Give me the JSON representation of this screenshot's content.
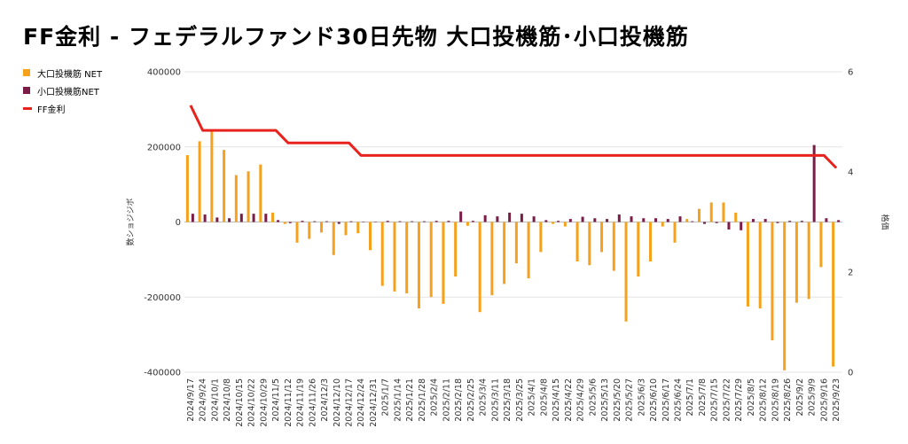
{
  "chart_data": {
    "type": "bar",
    "title": "FF金利 - フェデラルファンド30日先物 大口投機筋･小口投機筋",
    "ylabel": "数ショジジボ",
    "y2label": "格価",
    "ylim": [
      -400000,
      400000
    ],
    "y2lim": [
      0,
      6
    ],
    "yticks": [
      "400000",
      "200000",
      "0",
      "-200000",
      "-400000"
    ],
    "y2ticks": [
      "6",
      "4",
      "2",
      "0"
    ],
    "grid": true,
    "legend_position": "left",
    "categories": [
      "2024/9/17",
      "2024/9/24",
      "2024/10/1",
      "2024/10/8",
      "2024/10/15",
      "2024/10/22",
      "2024/10/29",
      "2024/11/5",
      "2024/11/12",
      "2024/11/19",
      "2024/11/26",
      "2024/12/3",
      "2024/12/10",
      "2024/12/17",
      "2024/12/24",
      "2024/12/31",
      "2025/1/7",
      "2025/1/14",
      "2025/1/21",
      "2025/1/28",
      "2025/2/4",
      "2025/2/11",
      "2025/2/18",
      "2025/2/25",
      "2025/3/4",
      "2025/3/11",
      "2025/3/18",
      "2025/3/25",
      "2025/4/1",
      "2025/4/8",
      "2025/4/15",
      "2025/4/22",
      "2025/4/29",
      "2025/5/6",
      "2025/5/13",
      "2025/5/20",
      "2025/5/27",
      "2025/6/3",
      "2025/6/10",
      "2025/6/17",
      "2025/6/24",
      "2025/7/1",
      "2025/7/8",
      "2025/7/15",
      "2025/7/22",
      "2025/7/29",
      "2025/8/5",
      "2025/8/12",
      "2025/8/19",
      "2025/8/26",
      "2025/9/2",
      "2025/9/9",
      "2025/9/16",
      "2025/9/23"
    ],
    "series": [
      {
        "name": "大口投機筋  NET",
        "kind": "bar",
        "axis": "left",
        "color": "#f5a11b",
        "values": [
          178000,
          215000,
          245000,
          192000,
          125000,
          135000,
          153000,
          25000,
          -5000,
          -55000,
          -45000,
          -28000,
          -88000,
          -35000,
          -30000,
          -75000,
          -170000,
          -185000,
          -190000,
          -230000,
          -200000,
          -218000,
          -145000,
          -10000,
          -240000,
          -195000,
          -165000,
          -110000,
          -150000,
          -80000,
          -5000,
          -12000,
          -105000,
          -115000,
          -80000,
          -130000,
          -265000,
          -145000,
          -105000,
          -12000,
          -55000,
          8000,
          35000,
          52000,
          52000,
          25000,
          -225000,
          -230000,
          -315000,
          -395000,
          -215000,
          -205000,
          -120000,
          -385000
        ]
      },
      {
        "name": "小口投機筋NET",
        "kind": "bar",
        "axis": "left",
        "color": "#7b1c47",
        "values": [
          22000,
          20000,
          12000,
          10000,
          22000,
          22000,
          22000,
          5000,
          -3000,
          3000,
          2000,
          2000,
          -5000,
          2000,
          0,
          0,
          3000,
          2000,
          2000,
          2000,
          3000,
          3000,
          28000,
          3000,
          18000,
          15000,
          25000,
          22000,
          15000,
          5000,
          3000,
          8000,
          14000,
          10000,
          8000,
          20000,
          15000,
          10000,
          10000,
          8000,
          15000,
          2000,
          -5000,
          -3000,
          -20000,
          -22000,
          8000,
          8000,
          -3000,
          3000,
          3000,
          205000,
          10000,
          5000
        ]
      },
      {
        "name": "FF金利",
        "kind": "line",
        "axis": "right",
        "color": "#e8231d",
        "values": [
          5.33,
          4.83,
          4.83,
          4.83,
          4.83,
          4.83,
          4.83,
          4.83,
          4.58,
          4.58,
          4.58,
          4.58,
          4.58,
          4.58,
          4.33,
          4.33,
          4.33,
          4.33,
          4.33,
          4.33,
          4.33,
          4.33,
          4.33,
          4.33,
          4.33,
          4.33,
          4.33,
          4.33,
          4.33,
          4.33,
          4.33,
          4.33,
          4.33,
          4.33,
          4.33,
          4.33,
          4.33,
          4.33,
          4.33,
          4.33,
          4.33,
          4.33,
          4.33,
          4.33,
          4.33,
          4.33,
          4.33,
          4.33,
          4.33,
          4.33,
          4.33,
          4.33,
          4.33,
          4.08
        ]
      }
    ]
  }
}
